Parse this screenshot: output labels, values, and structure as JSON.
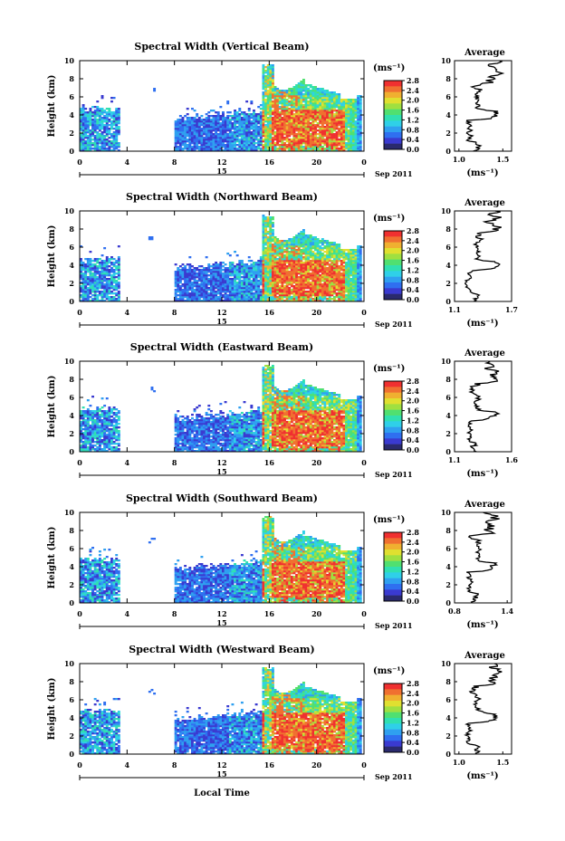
{
  "chart_data": [
    {
      "type": "heatmap",
      "title": "Spectral Width (Vertical Beam)",
      "ylabel": "Height (km)",
      "xticks": [
        "0",
        "4",
        "8",
        "12",
        "16",
        "20",
        "0"
      ],
      "yticks": [
        "0",
        "2",
        "4",
        "6",
        "8",
        "10"
      ],
      "xlim": [
        0,
        24
      ],
      "ylim": [
        0,
        10
      ],
      "date_marker": "15",
      "date_label": "Sep 2011",
      "colorbar": {
        "unit": "(ms⁻¹)",
        "ticks": [
          "0.0",
          "0.4",
          "0.8",
          "1.2",
          "1.6",
          "2.0",
          "2.4",
          "2.8"
        ]
      },
      "average": {
        "title": "Average",
        "xlabel": "(ms⁻¹)",
        "xticks": [
          "1.0",
          "1.5"
        ],
        "xlim": [
          0.95,
          1.6
        ],
        "yticks": [
          "0",
          "2",
          "4",
          "6",
          "8",
          "10"
        ]
      }
    },
    {
      "type": "heatmap",
      "title": "Spectral Width (Northward Beam)",
      "ylabel": "Height (km)",
      "xticks": [
        "0",
        "4",
        "8",
        "12",
        "16",
        "20",
        "0"
      ],
      "yticks": [
        "0",
        "2",
        "4",
        "6",
        "8",
        "10"
      ],
      "xlim": [
        0,
        24
      ],
      "ylim": [
        0,
        10
      ],
      "date_marker": "15",
      "date_label": "Sep 2011",
      "colorbar": {
        "unit": "(ms⁻¹)",
        "ticks": [
          "0.0",
          "0.4",
          "0.8",
          "1.2",
          "1.6",
          "2.0",
          "2.4",
          "2.8"
        ]
      },
      "average": {
        "title": "Average",
        "xlabel": "(ms⁻¹)",
        "xticks": [
          "1.1",
          "1.7"
        ],
        "xlim": [
          1.1,
          1.7
        ],
        "yticks": [
          "0",
          "2",
          "4",
          "6",
          "8",
          "10"
        ]
      }
    },
    {
      "type": "heatmap",
      "title": "Spectral Width (Eastward Beam)",
      "ylabel": "Height (km)",
      "xticks": [
        "0",
        "4",
        "8",
        "12",
        "16",
        "20",
        "0"
      ],
      "yticks": [
        "0",
        "2",
        "4",
        "6",
        "8",
        "10"
      ],
      "xlim": [
        0,
        24
      ],
      "ylim": [
        0,
        10
      ],
      "date_marker": "15",
      "date_label": "Sep 2011",
      "colorbar": {
        "unit": "(ms⁻¹)",
        "ticks": [
          "0.0",
          "0.4",
          "0.8",
          "1.2",
          "1.6",
          "2.0",
          "2.4",
          "2.8"
        ]
      },
      "average": {
        "title": "Average",
        "xlabel": "(ms⁻¹)",
        "xticks": [
          "1.1",
          "1.6"
        ],
        "xlim": [
          1.1,
          1.6
        ],
        "yticks": [
          "0",
          "2",
          "4",
          "6",
          "8",
          "10"
        ]
      }
    },
    {
      "type": "heatmap",
      "title": "Spectral Width (Southward Beam)",
      "ylabel": "Height (km)",
      "xticks": [
        "0",
        "4",
        "8",
        "12",
        "16",
        "20",
        "0"
      ],
      "yticks": [
        "0",
        "2",
        "4",
        "6",
        "8",
        "10"
      ],
      "xlim": [
        0,
        24
      ],
      "ylim": [
        0,
        10
      ],
      "date_marker": "15",
      "date_label": "Sep 2011",
      "colorbar": {
        "unit": "(ms⁻¹)",
        "ticks": [
          "0.0",
          "0.4",
          "0.8",
          "1.2",
          "1.6",
          "2.0",
          "2.4",
          "2.8"
        ]
      },
      "average": {
        "title": "Average",
        "xlabel": "(ms⁻¹)",
        "xticks": [
          "0.8",
          "1.4"
        ],
        "xlim": [
          0.8,
          1.45
        ],
        "yticks": [
          "0",
          "2",
          "4",
          "6",
          "8",
          "10"
        ]
      }
    },
    {
      "type": "heatmap",
      "title": "Spectral Width (Westward Beam)",
      "ylabel": "Height (km)",
      "xticks": [
        "0",
        "4",
        "8",
        "12",
        "16",
        "20",
        "0"
      ],
      "yticks": [
        "0",
        "2",
        "4",
        "6",
        "8",
        "10"
      ],
      "xlim": [
        0,
        24
      ],
      "ylim": [
        0,
        10
      ],
      "date_marker": "15",
      "date_label": "Sep 2011",
      "colorbar": {
        "unit": "(ms⁻¹)",
        "ticks": [
          "0.0",
          "0.4",
          "0.8",
          "1.2",
          "1.6",
          "2.0",
          "2.4",
          "2.8"
        ]
      },
      "average": {
        "title": "Average",
        "xlabel": "(ms⁻¹)",
        "xticks": [
          "1.0",
          "1.5"
        ],
        "xlim": [
          0.95,
          1.6
        ],
        "yticks": [
          "0",
          "2",
          "4",
          "6",
          "8",
          "10"
        ]
      }
    }
  ],
  "bottom_xlabel": "Local Time",
  "colormap": [
    "#2a2a6e",
    "#3a3ad0",
    "#2f6ff0",
    "#2fa0f0",
    "#2fd0e8",
    "#30e0b0",
    "#50e070",
    "#a0e040",
    "#e0e030",
    "#f0b030",
    "#f07030",
    "#f03030"
  ]
}
